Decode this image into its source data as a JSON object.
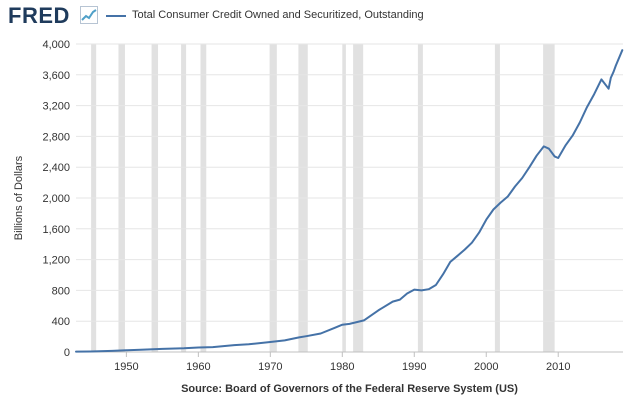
{
  "header": {
    "logo_text": "FRED",
    "legend_label": "Total Consumer Credit Owned and Securitized, Outstanding",
    "series_color": "#4572a7",
    "logo_color": "#1f3b5c",
    "logo_icon": "fred-graph-icon"
  },
  "chart_data": {
    "type": "line",
    "title": "",
    "xlabel": "",
    "ylabel": "Billions of Dollars",
    "source": "Source: Board of Governors of the Federal Reserve System (US)",
    "xlim": [
      1943,
      2019
    ],
    "ylim": [
      0,
      4000
    ],
    "grid": true,
    "legend": "top-left",
    "x_ticks": [
      "1950",
      "1960",
      "1970",
      "1980",
      "1990",
      "2000",
      "2010"
    ],
    "y_ticks": [
      "0",
      "400",
      "800",
      "1,200",
      "1,600",
      "2,000",
      "2,400",
      "2,800",
      "3,200",
      "3,600",
      "4,000"
    ],
    "recessions": [
      [
        1945.1,
        1945.8
      ],
      [
        1948.9,
        1949.8
      ],
      [
        1953.5,
        1954.4
      ],
      [
        1957.6,
        1958.3
      ],
      [
        1960.3,
        1961.1
      ],
      [
        1969.9,
        1970.9
      ],
      [
        1973.9,
        1975.2
      ],
      [
        1980.0,
        1980.5
      ],
      [
        1981.5,
        1982.9
      ],
      [
        1990.5,
        1991.2
      ],
      [
        2001.2,
        2001.9
      ],
      [
        2007.9,
        2009.5
      ]
    ],
    "series": [
      {
        "name": "Total Consumer Credit Owned and Securitized, Outstanding",
        "color": "#4572a7",
        "x": [
          1943,
          1945,
          1948,
          1950,
          1952,
          1955,
          1958,
          1960,
          1962,
          1965,
          1967,
          1970,
          1972,
          1974,
          1975,
          1977,
          1979,
          1980,
          1981,
          1983,
          1985,
          1987,
          1988,
          1989,
          1990,
          1991,
          1992,
          1993,
          1994,
          1995,
          1996,
          1997,
          1998,
          1999,
          2000,
          2001,
          2002,
          2003,
          2004,
          2005,
          2006,
          2007,
          2008,
          2008.7,
          2009.5,
          2010,
          2010.8,
          2011,
          2012,
          2013,
          2014,
          2015,
          2016,
          2017,
          2017.3,
          2017.7,
          2018,
          2018.9
        ],
        "y": [
          5,
          6,
          14,
          22,
          28,
          40,
          48,
          58,
          63,
          90,
          100,
          130,
          150,
          190,
          205,
          240,
          315,
          355,
          365,
          410,
          540,
          655,
          680,
          760,
          810,
          800,
          815,
          870,
          1010,
          1170,
          1250,
          1330,
          1420,
          1550,
          1720,
          1850,
          1940,
          2020,
          2150,
          2260,
          2400,
          2550,
          2670,
          2640,
          2540,
          2520,
          2650,
          2680,
          2810,
          2980,
          3180,
          3350,
          3540,
          3420,
          3560,
          3640,
          3720,
          3920
        ]
      }
    ]
  }
}
